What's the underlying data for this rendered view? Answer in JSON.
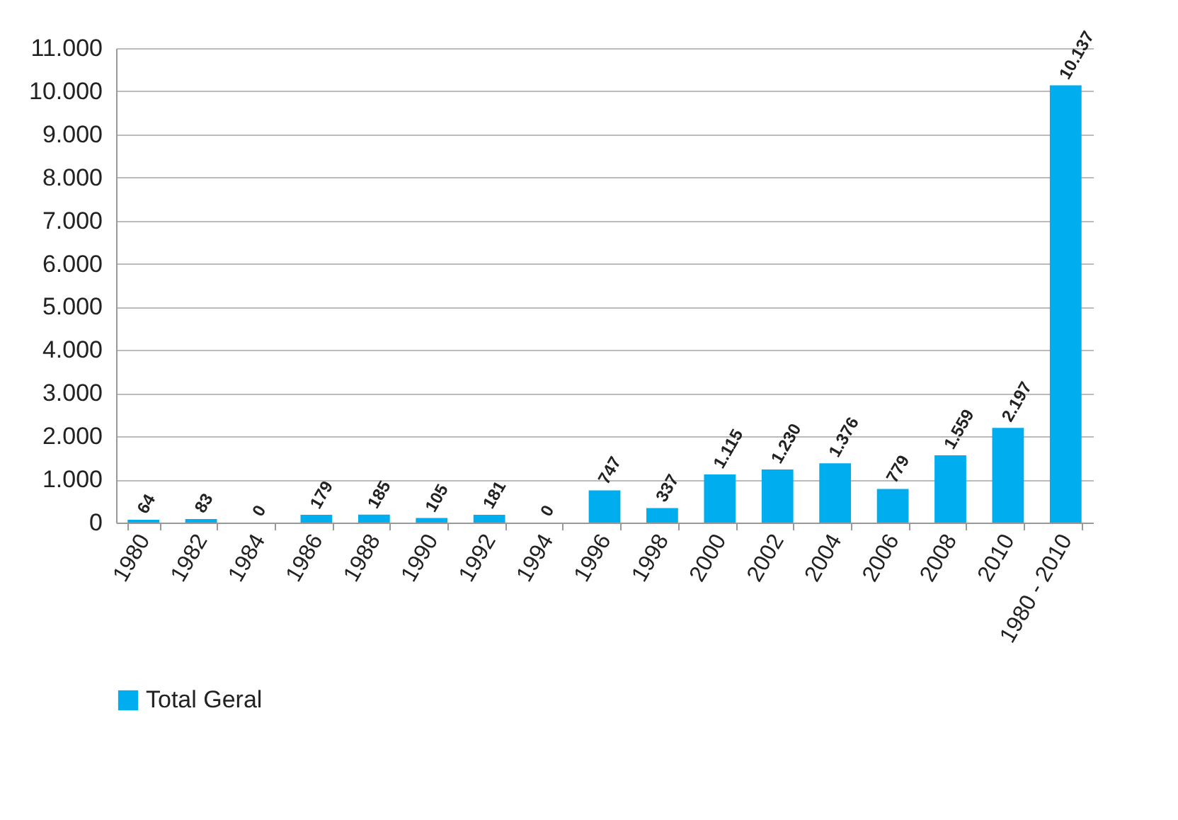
{
  "chart_data": {
    "type": "bar",
    "categories": [
      "1980",
      "1982",
      "1984",
      "1986",
      "1988",
      "1990",
      "1992",
      "1994",
      "1996",
      "1998",
      "2000",
      "2002",
      "2004",
      "2006",
      "2008",
      "2010",
      "1980 - 2010"
    ],
    "series": [
      {
        "name": "Total Geral",
        "color": "#00aeef",
        "values": [
          64,
          83,
          0,
          179,
          185,
          105,
          181,
          0,
          747,
          337,
          1115,
          1230,
          1376,
          779,
          1559,
          2197,
          10137
        ],
        "value_labels": [
          "64",
          "83",
          "0",
          "179",
          "185",
          "105",
          "181",
          "0",
          "747",
          "337",
          "1.115",
          "1.230",
          "1.376",
          "779",
          "1.559",
          "2.197",
          "10.137"
        ]
      }
    ],
    "ylim": [
      0,
      11000
    ],
    "yticks": [
      {
        "value": 0,
        "label": "0"
      },
      {
        "value": 1000,
        "label": "1.000"
      },
      {
        "value": 2000,
        "label": "2.000"
      },
      {
        "value": 3000,
        "label": "3.000"
      },
      {
        "value": 4000,
        "label": "4.000"
      },
      {
        "value": 5000,
        "label": "5.000"
      },
      {
        "value": 6000,
        "label": "6.000"
      },
      {
        "value": 7000,
        "label": "7.000"
      },
      {
        "value": 8000,
        "label": "8.000"
      },
      {
        "value": 9000,
        "label": "9.000"
      },
      {
        "value": 10000,
        "label": "10.000"
      },
      {
        "value": 11000,
        "label": "11.000"
      }
    ],
    "grid": "y",
    "legend": "bottom"
  }
}
